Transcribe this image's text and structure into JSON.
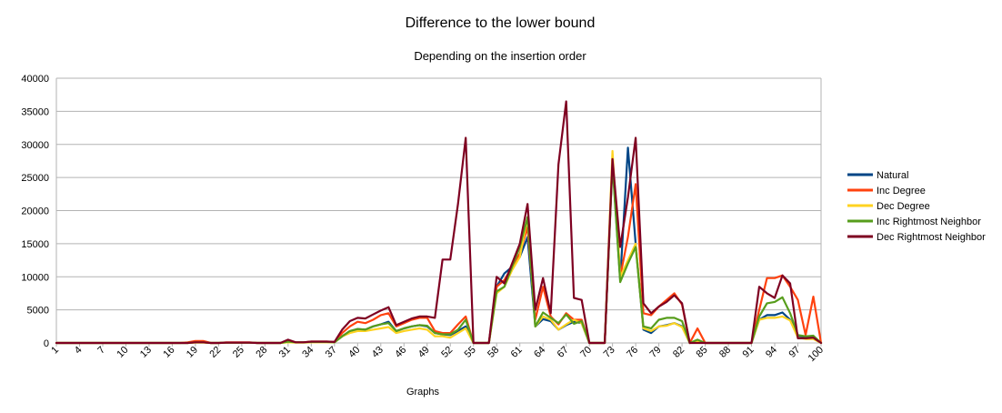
{
  "chart_data": {
    "type": "line",
    "title": "Difference to the lower bound",
    "subtitle": "Depending on the insertion order",
    "xlabel": "Graphs",
    "ylabel": "",
    "ylim": [
      0,
      40000
    ],
    "yticks": [
      0,
      5000,
      10000,
      15000,
      20000,
      25000,
      30000,
      35000,
      40000
    ],
    "xlim": [
      1,
      100
    ],
    "xticks": [
      1,
      4,
      7,
      10,
      13,
      16,
      19,
      22,
      25,
      28,
      31,
      34,
      37,
      40,
      43,
      46,
      49,
      52,
      55,
      58,
      61,
      64,
      67,
      70,
      73,
      76,
      79,
      82,
      85,
      88,
      91,
      94,
      97,
      100
    ],
    "grid": true,
    "legend_position": "right",
    "x": [
      1,
      2,
      3,
      4,
      5,
      6,
      7,
      8,
      9,
      10,
      11,
      12,
      13,
      14,
      15,
      16,
      17,
      18,
      19,
      20,
      21,
      22,
      23,
      24,
      25,
      26,
      27,
      28,
      29,
      30,
      31,
      32,
      33,
      34,
      35,
      36,
      37,
      38,
      39,
      40,
      41,
      42,
      43,
      44,
      45,
      46,
      47,
      48,
      49,
      50,
      51,
      52,
      53,
      54,
      55,
      56,
      57,
      58,
      59,
      60,
      61,
      62,
      63,
      64,
      65,
      66,
      67,
      68,
      69,
      70,
      71,
      72,
      73,
      74,
      75,
      76,
      77,
      78,
      79,
      80,
      81,
      82,
      83,
      84,
      85,
      86,
      87,
      88,
      89,
      90,
      91,
      92,
      93,
      94,
      95,
      96,
      97,
      98,
      99,
      100
    ],
    "series": [
      {
        "name": "Natural",
        "color": "#004586",
        "values": [
          0,
          0,
          0,
          0,
          0,
          0,
          0,
          0,
          0,
          0,
          0,
          0,
          0,
          0,
          0,
          0,
          0,
          0,
          100,
          100,
          0,
          0,
          50,
          50,
          50,
          50,
          0,
          0,
          0,
          0,
          200,
          100,
          100,
          150,
          150,
          150,
          100,
          1000,
          1800,
          2100,
          2000,
          2500,
          2800,
          3200,
          1800,
          2200,
          2500,
          2700,
          2500,
          1500,
          1300,
          1200,
          1800,
          2500,
          0,
          0,
          0,
          8500,
          10500,
          11500,
          13000,
          16000,
          2500,
          3600,
          3300,
          2000,
          2700,
          3200,
          3000,
          0,
          0,
          0,
          27500,
          9500,
          29500,
          15000,
          2000,
          1500,
          2500,
          2700,
          3000,
          2500,
          0,
          200,
          0,
          0,
          0,
          0,
          0,
          0,
          0,
          3500,
          4200,
          4200,
          4600,
          3500,
          1000,
          800,
          800,
          0
        ]
      },
      {
        "name": "Inc Degree",
        "color": "#ff420e",
        "values": [
          0,
          0,
          0,
          0,
          0,
          0,
          0,
          0,
          0,
          0,
          0,
          0,
          0,
          0,
          0,
          0,
          0,
          100,
          300,
          300,
          0,
          0,
          100,
          100,
          100,
          100,
          0,
          0,
          0,
          0,
          200,
          100,
          100,
          200,
          200,
          200,
          150,
          1500,
          2500,
          3200,
          3000,
          3500,
          4200,
          4500,
          2500,
          3000,
          3500,
          3800,
          3800,
          1800,
          1500,
          1500,
          2800,
          4000,
          0,
          0,
          0,
          8500,
          9500,
          11500,
          13500,
          17500,
          3500,
          8500,
          4000,
          2800,
          4500,
          3500,
          3500,
          0,
          0,
          0,
          28000,
          10000,
          16000,
          24000,
          4500,
          4200,
          5500,
          6500,
          7500,
          5800,
          0,
          2200,
          0,
          0,
          0,
          0,
          0,
          0,
          0,
          5000,
          9800,
          9800,
          10200,
          8500,
          6500,
          1200,
          7000,
          0
        ]
      },
      {
        "name": "Dec Degree",
        "color": "#ffd320",
        "values": [
          0,
          0,
          0,
          0,
          0,
          0,
          0,
          0,
          0,
          0,
          0,
          0,
          0,
          0,
          0,
          0,
          0,
          0,
          50,
          50,
          0,
          0,
          50,
          50,
          50,
          50,
          0,
          0,
          0,
          0,
          100,
          50,
          50,
          100,
          100,
          100,
          80,
          1000,
          1500,
          1800,
          1800,
          2000,
          2200,
          2400,
          1500,
          1800,
          2000,
          2200,
          2000,
          1000,
          1000,
          800,
          1500,
          2200,
          0,
          0,
          0,
          7500,
          8500,
          11000,
          13000,
          19000,
          2500,
          4000,
          3500,
          2000,
          2800,
          3500,
          3000,
          0,
          0,
          0,
          29000,
          10000,
          12500,
          15000,
          2200,
          1800,
          2500,
          2600,
          3000,
          2400,
          0,
          300,
          0,
          0,
          0,
          0,
          0,
          0,
          0,
          3500,
          3800,
          3800,
          4000,
          3400,
          800,
          600,
          600,
          0
        ]
      },
      {
        "name": "Inc Rightmost Neighbor",
        "color": "#579d1c",
        "values": [
          0,
          0,
          0,
          0,
          0,
          0,
          0,
          0,
          0,
          0,
          0,
          0,
          0,
          0,
          0,
          0,
          0,
          0,
          100,
          100,
          0,
          0,
          50,
          50,
          50,
          50,
          0,
          0,
          0,
          0,
          200,
          100,
          100,
          150,
          150,
          150,
          100,
          1000,
          1800,
          2100,
          2000,
          2500,
          2800,
          3000,
          1800,
          2200,
          2500,
          2700,
          2600,
          1500,
          1300,
          1300,
          2000,
          3500,
          0,
          0,
          0,
          7800,
          8500,
          11500,
          14500,
          19000,
          2500,
          4600,
          3800,
          3000,
          4300,
          2900,
          3300,
          0,
          0,
          0,
          27000,
          9200,
          12000,
          14500,
          2500,
          2200,
          3500,
          3800,
          3800,
          3300,
          0,
          500,
          0,
          0,
          0,
          0,
          0,
          0,
          0,
          4000,
          6000,
          6200,
          6900,
          4500,
          1200,
          1000,
          1100,
          0
        ]
      },
      {
        "name": "Dec Rightmost Neighbor",
        "color": "#7e0021",
        "values": [
          0,
          0,
          0,
          0,
          0,
          0,
          0,
          0,
          0,
          0,
          0,
          0,
          0,
          0,
          0,
          0,
          0,
          0,
          100,
          100,
          0,
          0,
          50,
          50,
          50,
          50,
          0,
          0,
          0,
          0,
          500,
          100,
          100,
          200,
          200,
          200,
          150,
          2000,
          3300,
          3800,
          3700,
          4300,
          4900,
          5400,
          2700,
          3200,
          3700,
          4000,
          4000,
          3800,
          12600,
          12600,
          21000,
          31000,
          0,
          0,
          0,
          10000,
          9000,
          12000,
          15000,
          21000,
          5000,
          9800,
          4500,
          27000,
          36500,
          6800,
          6500,
          0,
          0,
          0,
          27800,
          14500,
          22000,
          31000,
          6000,
          4500,
          5500,
          6200,
          7200,
          6000,
          0,
          0,
          0,
          0,
          0,
          0,
          0,
          0,
          0,
          8500,
          7500,
          6800,
          10200,
          9000,
          700,
          700,
          800,
          0
        ]
      }
    ]
  }
}
